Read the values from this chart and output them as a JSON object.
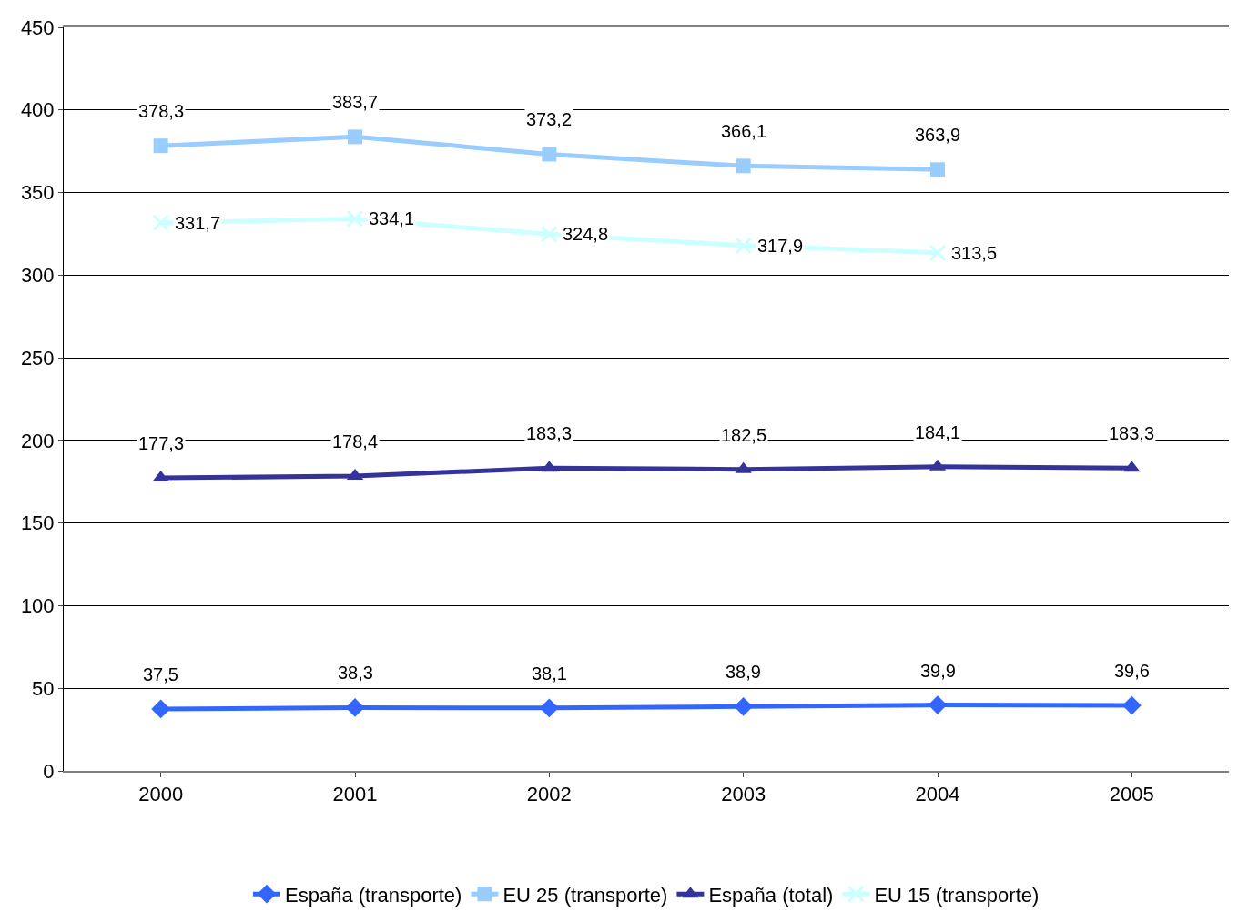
{
  "chart_data": {
    "type": "line",
    "categories": [
      "2000",
      "2001",
      "2002",
      "2003",
      "2004",
      "2005"
    ],
    "series": [
      {
        "name": "España (transporte)",
        "color": "#3366ff",
        "marker": "diamond",
        "values": [
          37.5,
          38.3,
          38.1,
          38.9,
          39.9,
          39.6
        ],
        "value_labels": [
          "37,5",
          "38,3",
          "38,1",
          "38,9",
          "39,9",
          "39,6"
        ]
      },
      {
        "name": "EU 25 (transporte)",
        "color": "#99ccff",
        "marker": "square",
        "values": [
          378.3,
          383.7,
          373.2,
          366.1,
          363.9,
          null
        ],
        "value_labels": [
          "378,3",
          "383,7",
          "373,2",
          "366,1",
          "363,9",
          null
        ]
      },
      {
        "name": "España (total)",
        "color": "#333399",
        "marker": "triangle",
        "values": [
          177.3,
          178.4,
          183.3,
          182.5,
          184.1,
          183.3
        ],
        "value_labels": [
          "177,3",
          "178,4",
          "183,3",
          "182,5",
          "184,1",
          "183,3"
        ]
      },
      {
        "name": "EU 15 (transporte)",
        "color": "#ccffff",
        "marker": "cross",
        "values": [
          331.7,
          334.1,
          324.8,
          317.9,
          313.5,
          null
        ],
        "value_labels": [
          "331,7",
          "334,1",
          "324,8",
          "317,9",
          "313,5",
          null
        ]
      }
    ],
    "ylim": [
      0,
      450
    ],
    "yticks": [
      0,
      50,
      100,
      150,
      200,
      250,
      300,
      350,
      400,
      450
    ],
    "grid": "y",
    "legend": "bottom",
    "line_style": "solid"
  }
}
